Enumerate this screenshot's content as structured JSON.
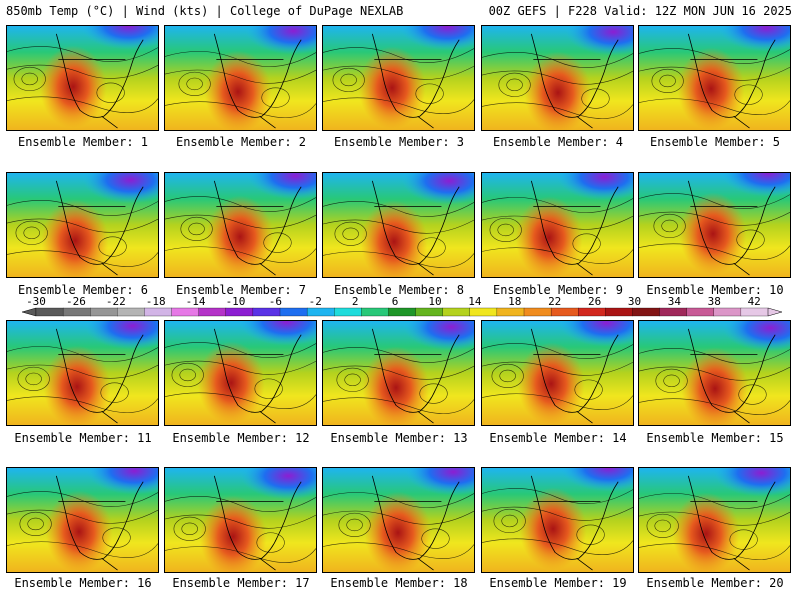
{
  "header": {
    "left": "850mb Temp (°C) | Wind (kts) | College of DuPage NEXLAB",
    "right": "00Z GEFS | F228 Valid: 12Z MON JUN 16 2025"
  },
  "panels": [
    {
      "label": "Ensemble Member: 1"
    },
    {
      "label": "Ensemble Member: 2"
    },
    {
      "label": "Ensemble Member: 3"
    },
    {
      "label": "Ensemble Member: 4"
    },
    {
      "label": "Ensemble Member: 5"
    },
    {
      "label": "Ensemble Member: 6"
    },
    {
      "label": "Ensemble Member: 7"
    },
    {
      "label": "Ensemble Member: 8"
    },
    {
      "label": "Ensemble Member: 9"
    },
    {
      "label": "Ensemble Member: 10"
    },
    {
      "label": "Ensemble Member: 11"
    },
    {
      "label": "Ensemble Member: 12"
    },
    {
      "label": "Ensemble Member: 13"
    },
    {
      "label": "Ensemble Member: 14"
    },
    {
      "label": "Ensemble Member: 15"
    },
    {
      "label": "Ensemble Member: 16"
    },
    {
      "label": "Ensemble Member: 17"
    },
    {
      "label": "Ensemble Member: 18"
    },
    {
      "label": "Ensemble Member: 19"
    },
    {
      "label": "Ensemble Member: 20"
    }
  ],
  "colorbar": {
    "ticks": [
      "-30",
      "-26",
      "-22",
      "-18",
      "-14",
      "-10",
      "-6",
      "-2",
      "2",
      "6",
      "10",
      "14",
      "18",
      "22",
      "26",
      "30",
      "34",
      "38",
      "42"
    ],
    "colors": [
      "#5a5a5a",
      "#787878",
      "#969696",
      "#b4b4b4",
      "#d2b4e6",
      "#e678e6",
      "#b432c8",
      "#8c1ed2",
      "#5a32e6",
      "#1e6ef0",
      "#1eb4f0",
      "#1edcdc",
      "#28c878",
      "#1e9628",
      "#64b41e",
      "#b4d21e",
      "#f0e61e",
      "#f0b41e",
      "#f08c1e",
      "#e65a1e",
      "#d2281e",
      "#aa1414",
      "#821414",
      "#a0285a",
      "#c85a96",
      "#dc96c8",
      "#e6c8e6"
    ]
  }
}
